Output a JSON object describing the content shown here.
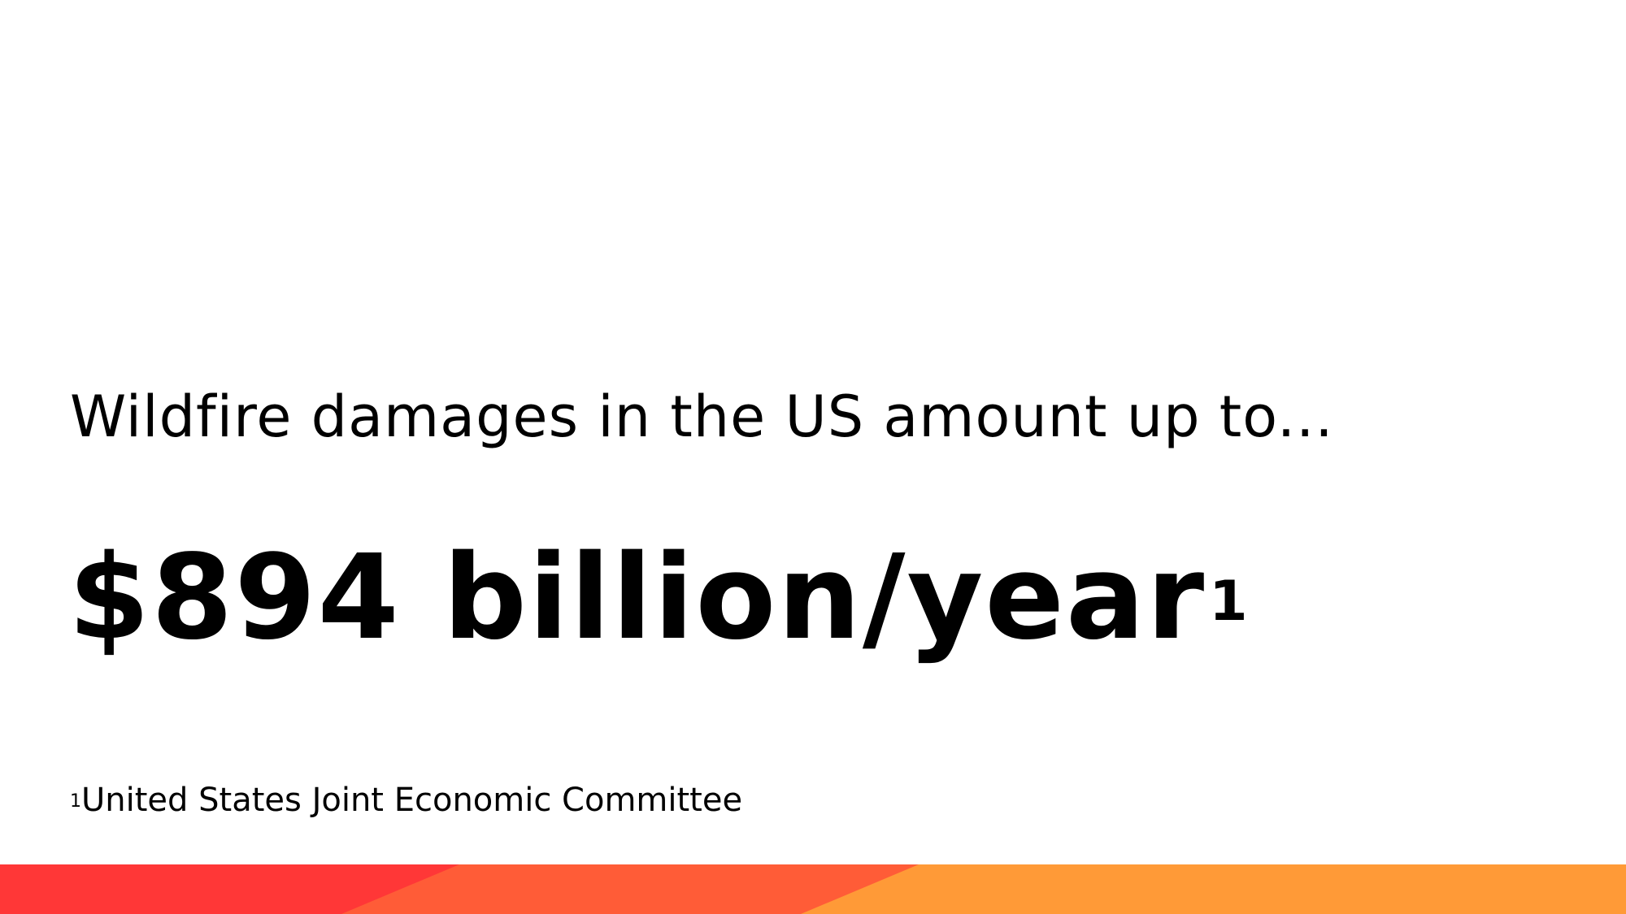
{
  "slide": {
    "intro_text": "Wildfire damages in the US amount up to...",
    "headline_value": "$894 billion/year",
    "headline_marker": "1",
    "footnote_marker": "1",
    "footnote_text": "United States Joint Economic Committee"
  },
  "colors": {
    "text": "#000000",
    "background": "#ffffff",
    "band_red": "#ff3737",
    "band_orange": "#ff5c37",
    "band_amber": "#ff9a37"
  }
}
